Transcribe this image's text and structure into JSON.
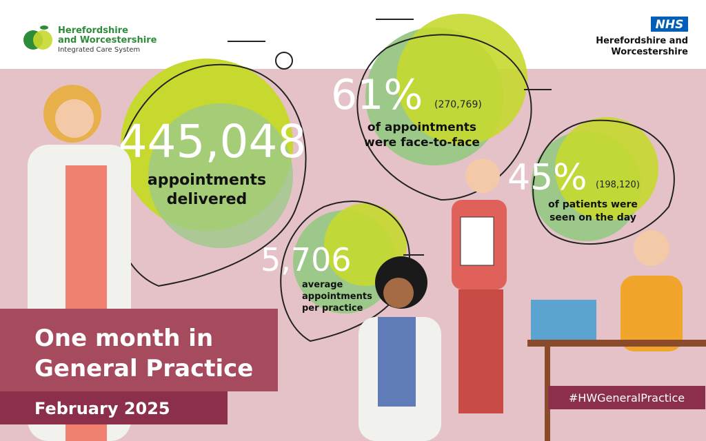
{
  "logo": {
    "lines": [
      "Herefordshire",
      "and Worcestershire"
    ],
    "subtitle": "Integrated Care System"
  },
  "nhs": {
    "badge": "NHS",
    "lines": [
      "Herefordshire and",
      "Worcestershire"
    ]
  },
  "stats": [
    {
      "value": "445,048",
      "caption": [
        "appointments",
        "delivered"
      ]
    },
    {
      "value": "61%",
      "detail": "(270,769)",
      "caption": [
        "of appointments",
        "were face-to-face"
      ]
    },
    {
      "value": "45%",
      "detail": "(198,120)",
      "caption": [
        "of patients were",
        "seen on the day"
      ]
    },
    {
      "value": "5,706",
      "caption": [
        "average",
        "appointments",
        "per practice"
      ]
    }
  ],
  "title": [
    "One month in",
    "General Practice"
  ],
  "date": "February 2025",
  "hashtag": "#HWGeneralPractice"
}
